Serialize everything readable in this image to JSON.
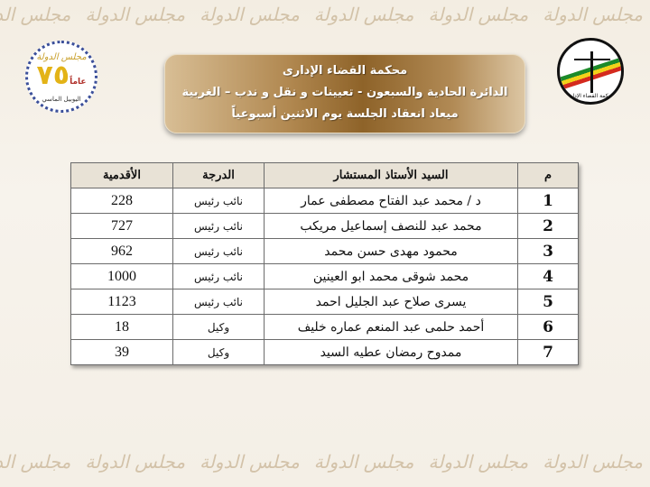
{
  "watermark_text": "مجلس الدولة",
  "logo_left": {
    "line1": "مجلس الدولة",
    "number": "٧٥",
    "unit": "عاماً",
    "line3": "اليوبيل الماسي"
  },
  "logo_right": {
    "caption": "محكمة القضاء الإداري"
  },
  "banner": {
    "line1": "محكمة القضاء الإدارى",
    "line2": "الدائرة الحادية والسبعون - تعيينات و نقل و ندب – الغربية",
    "line3": "ميعاد انعقاد الجلسة يوم الاثنين أسبوعياً"
  },
  "table": {
    "headers": {
      "num": "م",
      "name": "السيد الأستاذ المستشار",
      "degree": "الدرجة",
      "seniority": "الأقدمية"
    },
    "rows": [
      {
        "num": "1",
        "name": "د / محمد عبد الفتاح مصطفى عمار",
        "degree": "نائب رئيس",
        "seniority": "228"
      },
      {
        "num": "2",
        "name": "محمد عبد للنصف إسماعيل مريكب",
        "degree": "نائب رئيس",
        "seniority": "727"
      },
      {
        "num": "3",
        "name": "محمود مهدى حسن محمد",
        "degree": "نائب رئيس",
        "seniority": "962"
      },
      {
        "num": "4",
        "name": "محمد شوقى محمد ابو العينين",
        "degree": "نائب رئيس",
        "seniority": "1000"
      },
      {
        "num": "5",
        "name": "يسرى صلاح عبد الجليل احمد",
        "degree": "نائب رئيس",
        "seniority": "1123"
      },
      {
        "num": "6",
        "name": "أحمد حلمى عبد المنعم عماره خليف",
        "degree": "وكيل",
        "seniority": "18"
      },
      {
        "num": "7",
        "name": "ممدوح رمضان عطيه السيد",
        "degree": "وكيل",
        "seniority": "39"
      }
    ]
  }
}
